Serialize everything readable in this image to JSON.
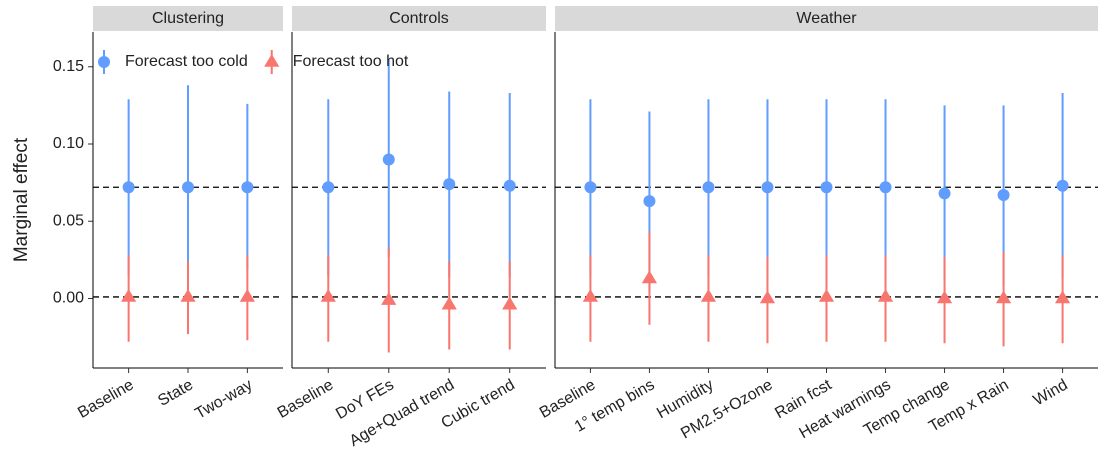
{
  "chart_data": {
    "type": "pointrange",
    "y_label": "Marginal effect",
    "ylim": [
      -0.045,
      0.1725
    ],
    "yticks": [
      {
        "value": 0,
        "label": "0.00"
      },
      0.05,
      {
        "value": 0.1,
        "label": "0.10"
      },
      0.15
    ],
    "reference_lines": [
      0.072,
      0.001
    ],
    "legend": "top-left",
    "series": [
      {
        "name": "Forecast too cold",
        "color": "#619CFF",
        "marker": "circle"
      },
      {
        "name": "Forecast too hot",
        "color": "#F8766D",
        "marker": "triangle"
      }
    ],
    "facets": [
      {
        "title": "Clustering",
        "categories": [
          "Baseline",
          "State",
          "Two-way"
        ],
        "series": [
          {
            "values": [
              0.072,
              0.072,
              0.072
            ],
            "lower": [
              0.015,
              0.006,
              0.019
            ],
            "upper": [
              0.129,
              0.138,
              0.126
            ]
          },
          {
            "values": [
              0.001,
              0.001,
              0.001
            ],
            "lower": [
              -0.028,
              -0.023,
              -0.027
            ],
            "upper": [
              0.028,
              0.024,
              0.028
            ]
          }
        ]
      },
      {
        "title": "Controls",
        "categories": [
          "Baseline",
          "DoY FEs",
          "Age+Quad trend",
          "Cubic trend"
        ],
        "series": [
          {
            "values": [
              0.072,
              0.09,
              0.074,
              0.073
            ],
            "lower": [
              0.015,
              0.027,
              0.014,
              0.014
            ],
            "upper": [
              0.129,
              0.155,
              0.134,
              0.133
            ]
          },
          {
            "values": [
              0.001,
              -0.001,
              -0.004,
              -0.004
            ],
            "lower": [
              -0.028,
              -0.035,
              -0.033,
              -0.033
            ],
            "upper": [
              0.028,
              0.033,
              0.024,
              0.024
            ]
          }
        ]
      },
      {
        "title": "Weather",
        "categories": [
          "Baseline",
          "1° temp bins",
          "Humidity",
          "PM2.5+Ozone",
          "Rain fcst",
          "Heat warnings",
          "Temp change",
          "Temp x Rain",
          "Wind"
        ],
        "series": [
          {
            "values": [
              0.072,
              0.063,
              0.072,
              0.072,
              0.072,
              0.072,
              0.068,
              0.067,
              0.073
            ],
            "lower": [
              0.015,
              0.005,
              0.015,
              0.015,
              0.015,
              0.015,
              0.011,
              0.008,
              0.014
            ],
            "upper": [
              0.129,
              0.121,
              0.129,
              0.129,
              0.129,
              0.129,
              0.125,
              0.125,
              0.133
            ]
          },
          {
            "values": [
              0.001,
              0.013,
              0.001,
              0.0,
              0.001,
              0.001,
              0.0,
              0.0,
              0.0
            ],
            "lower": [
              -0.028,
              -0.017,
              -0.028,
              -0.029,
              -0.028,
              -0.028,
              -0.029,
              -0.031,
              -0.029
            ],
            "upper": [
              0.028,
              0.043,
              0.028,
              0.027,
              0.028,
              0.028,
              0.027,
              0.03,
              0.028
            ]
          }
        ]
      }
    ]
  }
}
